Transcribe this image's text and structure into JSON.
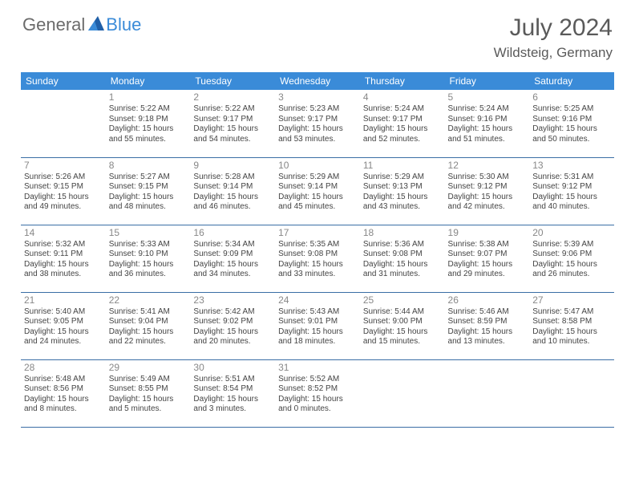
{
  "brand": {
    "part1": "General",
    "part2": "Blue"
  },
  "title": "July 2024",
  "location": "Wildsteig, Germany",
  "colors": {
    "header_bg": "#3a8bd8",
    "header_text": "#ffffff",
    "row_border": "#3a6ea5",
    "text": "#444444",
    "daynum": "#888888",
    "title_text": "#5a5a5a"
  },
  "weekdays": [
    "Sunday",
    "Monday",
    "Tuesday",
    "Wednesday",
    "Thursday",
    "Friday",
    "Saturday"
  ],
  "weeks": [
    [
      null,
      {
        "d": "1",
        "sr": "5:22 AM",
        "ss": "9:18 PM",
        "dl": "15 hours and 55 minutes."
      },
      {
        "d": "2",
        "sr": "5:22 AM",
        "ss": "9:17 PM",
        "dl": "15 hours and 54 minutes."
      },
      {
        "d": "3",
        "sr": "5:23 AM",
        "ss": "9:17 PM",
        "dl": "15 hours and 53 minutes."
      },
      {
        "d": "4",
        "sr": "5:24 AM",
        "ss": "9:17 PM",
        "dl": "15 hours and 52 minutes."
      },
      {
        "d": "5",
        "sr": "5:24 AM",
        "ss": "9:16 PM",
        "dl": "15 hours and 51 minutes."
      },
      {
        "d": "6",
        "sr": "5:25 AM",
        "ss": "9:16 PM",
        "dl": "15 hours and 50 minutes."
      }
    ],
    [
      {
        "d": "7",
        "sr": "5:26 AM",
        "ss": "9:15 PM",
        "dl": "15 hours and 49 minutes."
      },
      {
        "d": "8",
        "sr": "5:27 AM",
        "ss": "9:15 PM",
        "dl": "15 hours and 48 minutes."
      },
      {
        "d": "9",
        "sr": "5:28 AM",
        "ss": "9:14 PM",
        "dl": "15 hours and 46 minutes."
      },
      {
        "d": "10",
        "sr": "5:29 AM",
        "ss": "9:14 PM",
        "dl": "15 hours and 45 minutes."
      },
      {
        "d": "11",
        "sr": "5:29 AM",
        "ss": "9:13 PM",
        "dl": "15 hours and 43 minutes."
      },
      {
        "d": "12",
        "sr": "5:30 AM",
        "ss": "9:12 PM",
        "dl": "15 hours and 42 minutes."
      },
      {
        "d": "13",
        "sr": "5:31 AM",
        "ss": "9:12 PM",
        "dl": "15 hours and 40 minutes."
      }
    ],
    [
      {
        "d": "14",
        "sr": "5:32 AM",
        "ss": "9:11 PM",
        "dl": "15 hours and 38 minutes."
      },
      {
        "d": "15",
        "sr": "5:33 AM",
        "ss": "9:10 PM",
        "dl": "15 hours and 36 minutes."
      },
      {
        "d": "16",
        "sr": "5:34 AM",
        "ss": "9:09 PM",
        "dl": "15 hours and 34 minutes."
      },
      {
        "d": "17",
        "sr": "5:35 AM",
        "ss": "9:08 PM",
        "dl": "15 hours and 33 minutes."
      },
      {
        "d": "18",
        "sr": "5:36 AM",
        "ss": "9:08 PM",
        "dl": "15 hours and 31 minutes."
      },
      {
        "d": "19",
        "sr": "5:38 AM",
        "ss": "9:07 PM",
        "dl": "15 hours and 29 minutes."
      },
      {
        "d": "20",
        "sr": "5:39 AM",
        "ss": "9:06 PM",
        "dl": "15 hours and 26 minutes."
      }
    ],
    [
      {
        "d": "21",
        "sr": "5:40 AM",
        "ss": "9:05 PM",
        "dl": "15 hours and 24 minutes."
      },
      {
        "d": "22",
        "sr": "5:41 AM",
        "ss": "9:04 PM",
        "dl": "15 hours and 22 minutes."
      },
      {
        "d": "23",
        "sr": "5:42 AM",
        "ss": "9:02 PM",
        "dl": "15 hours and 20 minutes."
      },
      {
        "d": "24",
        "sr": "5:43 AM",
        "ss": "9:01 PM",
        "dl": "15 hours and 18 minutes."
      },
      {
        "d": "25",
        "sr": "5:44 AM",
        "ss": "9:00 PM",
        "dl": "15 hours and 15 minutes."
      },
      {
        "d": "26",
        "sr": "5:46 AM",
        "ss": "8:59 PM",
        "dl": "15 hours and 13 minutes."
      },
      {
        "d": "27",
        "sr": "5:47 AM",
        "ss": "8:58 PM",
        "dl": "15 hours and 10 minutes."
      }
    ],
    [
      {
        "d": "28",
        "sr": "5:48 AM",
        "ss": "8:56 PM",
        "dl": "15 hours and 8 minutes."
      },
      {
        "d": "29",
        "sr": "5:49 AM",
        "ss": "8:55 PM",
        "dl": "15 hours and 5 minutes."
      },
      {
        "d": "30",
        "sr": "5:51 AM",
        "ss": "8:54 PM",
        "dl": "15 hours and 3 minutes."
      },
      {
        "d": "31",
        "sr": "5:52 AM",
        "ss": "8:52 PM",
        "dl": "15 hours and 0 minutes."
      },
      null,
      null,
      null
    ]
  ],
  "labels": {
    "sunrise": "Sunrise:",
    "sunset": "Sunset:",
    "daylight": "Daylight:"
  }
}
